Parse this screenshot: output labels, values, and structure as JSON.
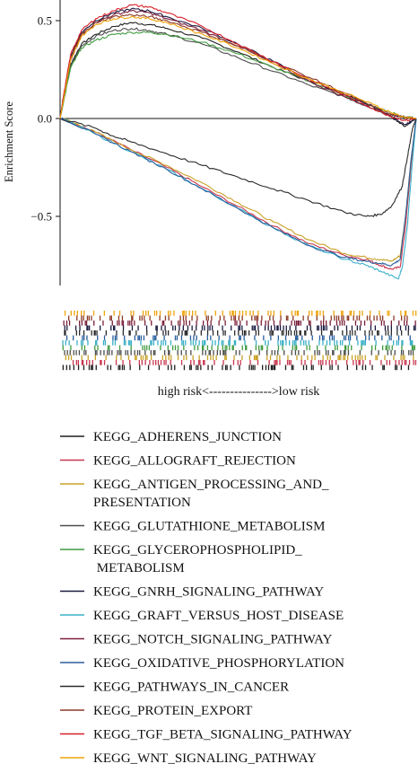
{
  "chart_data": {
    "type": "line",
    "ylabel": "Enrichment Score",
    "yticks": [
      0.5,
      0.0,
      -0.5
    ],
    "ytick_labels": [
      "0.5",
      "0.0",
      "−0.5"
    ],
    "ylim": [
      -0.85,
      0.6
    ],
    "x_direction_label": "high risk<--------------->low risk",
    "grid": false,
    "legend_position": "below",
    "series": [
      {
        "name": "KEGG_ADHERENS_JUNCTION",
        "color": "#1f1f1f",
        "points": [
          [
            0,
            0
          ],
          [
            0.01,
            0.1
          ],
          [
            0.03,
            0.28
          ],
          [
            0.06,
            0.38
          ],
          [
            0.1,
            0.43
          ],
          [
            0.15,
            0.47
          ],
          [
            0.2,
            0.49
          ],
          [
            0.25,
            0.48
          ],
          [
            0.3,
            0.46
          ],
          [
            0.4,
            0.41
          ],
          [
            0.5,
            0.34
          ],
          [
            0.6,
            0.26
          ],
          [
            0.7,
            0.19
          ],
          [
            0.8,
            0.12
          ],
          [
            0.88,
            0.06
          ],
          [
            0.93,
            0.01
          ],
          [
            0.97,
            -0.04
          ],
          [
            1,
            0
          ]
        ]
      },
      {
        "name": "KEGG_ALLOGRAFT_REJECTION",
        "color": "#c8364f",
        "points": [
          [
            0,
            0
          ],
          [
            0.012,
            -0.004
          ],
          [
            0.1,
            -0.07
          ],
          [
            0.2,
            -0.16
          ],
          [
            0.3,
            -0.25
          ],
          [
            0.4,
            -0.35
          ],
          [
            0.5,
            -0.45
          ],
          [
            0.6,
            -0.55
          ],
          [
            0.7,
            -0.64
          ],
          [
            0.8,
            -0.7
          ],
          [
            0.86,
            -0.72
          ],
          [
            0.9,
            -0.75
          ],
          [
            0.93,
            -0.77
          ],
          [
            0.955,
            -0.76
          ],
          [
            0.97,
            -0.55
          ],
          [
            0.985,
            -0.25
          ],
          [
            1,
            0
          ]
        ]
      },
      {
        "name": "KEGG_ANTIGEN_PROCESSING_AND_\nPRESENTATION",
        "color": "#c9a227",
        "points": [
          [
            0,
            0
          ],
          [
            0.015,
            -0.004
          ],
          [
            0.1,
            -0.07
          ],
          [
            0.2,
            -0.16
          ],
          [
            0.3,
            -0.24
          ],
          [
            0.4,
            -0.33
          ],
          [
            0.5,
            -0.43
          ],
          [
            0.6,
            -0.53
          ],
          [
            0.7,
            -0.62
          ],
          [
            0.8,
            -0.69
          ],
          [
            0.86,
            -0.71
          ],
          [
            0.9,
            -0.72
          ],
          [
            0.93,
            -0.73
          ],
          [
            0.955,
            -0.7
          ],
          [
            0.97,
            -0.5
          ],
          [
            0.985,
            -0.22
          ],
          [
            1,
            0
          ]
        ]
      },
      {
        "name": "KEGG_GLUTATHIONE_METABOLISM",
        "color": "#4d4d4d",
        "points": [
          [
            0,
            0
          ],
          [
            0.01,
            0.09
          ],
          [
            0.03,
            0.27
          ],
          [
            0.06,
            0.37
          ],
          [
            0.1,
            0.42
          ],
          [
            0.15,
            0.45
          ],
          [
            0.2,
            0.46
          ],
          [
            0.25,
            0.45
          ],
          [
            0.3,
            0.43
          ],
          [
            0.4,
            0.38
          ],
          [
            0.5,
            0.31
          ],
          [
            0.6,
            0.24
          ],
          [
            0.7,
            0.17
          ],
          [
            0.8,
            0.11
          ],
          [
            0.88,
            0.05
          ],
          [
            0.92,
            0.02
          ],
          [
            0.96,
            0.01
          ],
          [
            1,
            0
          ]
        ]
      },
      {
        "name": "KEGG_GLYCEROPHOSPHOLIPID_\n METABOLISM",
        "color": "#3f9b3f",
        "points": [
          [
            0,
            0
          ],
          [
            0.01,
            0.09
          ],
          [
            0.03,
            0.26
          ],
          [
            0.06,
            0.36
          ],
          [
            0.1,
            0.4
          ],
          [
            0.15,
            0.43
          ],
          [
            0.2,
            0.44
          ],
          [
            0.25,
            0.44
          ],
          [
            0.3,
            0.43
          ],
          [
            0.4,
            0.39
          ],
          [
            0.5,
            0.33
          ],
          [
            0.6,
            0.26
          ],
          [
            0.7,
            0.19
          ],
          [
            0.8,
            0.12
          ],
          [
            0.88,
            0.06
          ],
          [
            0.93,
            0.03
          ],
          [
            0.96,
            0.01
          ],
          [
            1,
            0
          ]
        ]
      },
      {
        "name": "KEGG_GNRH_SIGNALING_PATHWAY",
        "color": "#1a1a40",
        "points": [
          [
            0,
            0
          ],
          [
            0.01,
            0.12
          ],
          [
            0.03,
            0.32
          ],
          [
            0.06,
            0.44
          ],
          [
            0.1,
            0.5
          ],
          [
            0.15,
            0.54
          ],
          [
            0.2,
            0.56
          ],
          [
            0.25,
            0.55
          ],
          [
            0.3,
            0.52
          ],
          [
            0.4,
            0.46
          ],
          [
            0.5,
            0.38
          ],
          [
            0.6,
            0.29
          ],
          [
            0.7,
            0.2
          ],
          [
            0.8,
            0.12
          ],
          [
            0.88,
            0.06
          ],
          [
            0.93,
            0.01
          ],
          [
            0.97,
            -0.03
          ],
          [
            1,
            0
          ]
        ]
      },
      {
        "name": "KEGG_GRAFT_VERSUS_HOST_DISEASE",
        "color": "#3ab0c9",
        "points": [
          [
            0,
            0
          ],
          [
            0.01,
            -0.004
          ],
          [
            0.1,
            -0.08
          ],
          [
            0.2,
            -0.17
          ],
          [
            0.3,
            -0.26
          ],
          [
            0.4,
            -0.36
          ],
          [
            0.5,
            -0.46
          ],
          [
            0.6,
            -0.56
          ],
          [
            0.7,
            -0.65
          ],
          [
            0.8,
            -0.72
          ],
          [
            0.86,
            -0.75
          ],
          [
            0.9,
            -0.78
          ],
          [
            0.95,
            -0.82
          ],
          [
            0.962,
            -0.75
          ],
          [
            0.975,
            -0.55
          ],
          [
            0.988,
            -0.25
          ],
          [
            1,
            0
          ]
        ]
      },
      {
        "name": "KEGG_NOTCH_SIGNALING_PATHWAY",
        "color": "#7a1f3a",
        "points": [
          [
            0,
            0
          ],
          [
            0.01,
            0.11
          ],
          [
            0.03,
            0.3
          ],
          [
            0.06,
            0.42
          ],
          [
            0.1,
            0.49
          ],
          [
            0.15,
            0.53
          ],
          [
            0.2,
            0.55
          ],
          [
            0.25,
            0.54
          ],
          [
            0.3,
            0.51
          ],
          [
            0.4,
            0.45
          ],
          [
            0.5,
            0.37
          ],
          [
            0.6,
            0.28
          ],
          [
            0.7,
            0.19
          ],
          [
            0.8,
            0.11
          ],
          [
            0.88,
            0.05
          ],
          [
            0.93,
            0.02
          ],
          [
            0.96,
            0.01
          ],
          [
            1,
            0
          ]
        ]
      },
      {
        "name": "KEGG_OXIDATIVE_PHOSPHORYLATION",
        "color": "#2a5f9e",
        "points": [
          [
            0,
            0
          ],
          [
            0.01,
            -0.003
          ],
          [
            0.1,
            -0.08
          ],
          [
            0.2,
            -0.17
          ],
          [
            0.3,
            -0.26
          ],
          [
            0.4,
            -0.36
          ],
          [
            0.5,
            -0.46
          ],
          [
            0.6,
            -0.56
          ],
          [
            0.7,
            -0.65
          ],
          [
            0.8,
            -0.71
          ],
          [
            0.86,
            -0.73
          ],
          [
            0.9,
            -0.74
          ],
          [
            0.93,
            -0.75
          ],
          [
            0.955,
            -0.72
          ],
          [
            0.97,
            -0.5
          ],
          [
            0.985,
            -0.22
          ],
          [
            1,
            0
          ]
        ]
      },
      {
        "name": "KEGG_PATHWAYS_IN_CANCER",
        "color": "#2b2b2b",
        "points": [
          [
            0,
            0
          ],
          [
            0.1,
            -0.05
          ],
          [
            0.15,
            -0.09
          ],
          [
            0.2,
            -0.12
          ],
          [
            0.3,
            -0.18
          ],
          [
            0.4,
            -0.24
          ],
          [
            0.5,
            -0.3
          ],
          [
            0.6,
            -0.36
          ],
          [
            0.7,
            -0.42
          ],
          [
            0.8,
            -0.48
          ],
          [
            0.86,
            -0.5
          ],
          [
            0.9,
            -0.49
          ],
          [
            0.93,
            -0.45
          ],
          [
            0.96,
            -0.35
          ],
          [
            0.975,
            -0.2
          ],
          [
            0.99,
            -0.05
          ],
          [
            1,
            0
          ]
        ]
      },
      {
        "name": "KEGG_PROTEIN_EXPORT",
        "color": "#8b3a2a",
        "points": [
          [
            0,
            0
          ],
          [
            0.01,
            0.11
          ],
          [
            0.03,
            0.31
          ],
          [
            0.06,
            0.43
          ],
          [
            0.1,
            0.49
          ],
          [
            0.15,
            0.52
          ],
          [
            0.2,
            0.53
          ],
          [
            0.25,
            0.52
          ],
          [
            0.3,
            0.5
          ],
          [
            0.4,
            0.44
          ],
          [
            0.5,
            0.37
          ],
          [
            0.6,
            0.29
          ],
          [
            0.7,
            0.21
          ],
          [
            0.8,
            0.13
          ],
          [
            0.88,
            0.06
          ],
          [
            0.93,
            0.02
          ],
          [
            0.96,
            0.01
          ],
          [
            1,
            0
          ]
        ]
      },
      {
        "name": "KEGG_TGF_BETA_SIGNALING_PATHWAY",
        "color": "#d6202a",
        "points": [
          [
            0,
            0
          ],
          [
            0.01,
            0.12
          ],
          [
            0.03,
            0.33
          ],
          [
            0.06,
            0.45
          ],
          [
            0.1,
            0.51
          ],
          [
            0.15,
            0.55
          ],
          [
            0.2,
            0.58
          ],
          [
            0.25,
            0.57
          ],
          [
            0.3,
            0.54
          ],
          [
            0.4,
            0.47
          ],
          [
            0.5,
            0.38
          ],
          [
            0.6,
            0.29
          ],
          [
            0.7,
            0.2
          ],
          [
            0.8,
            0.12
          ],
          [
            0.88,
            0.05
          ],
          [
            0.93,
            0.01
          ],
          [
            0.97,
            -0.01
          ],
          [
            1,
            0
          ]
        ]
      },
      {
        "name": "KEGG_WNT_SIGNALING_PATHWAY",
        "color": "#f0a30a",
        "points": [
          [
            0,
            0
          ],
          [
            0.01,
            0.1
          ],
          [
            0.03,
            0.3
          ],
          [
            0.06,
            0.42
          ],
          [
            0.1,
            0.48
          ],
          [
            0.15,
            0.51
          ],
          [
            0.2,
            0.52
          ],
          [
            0.25,
            0.51
          ],
          [
            0.3,
            0.49
          ],
          [
            0.4,
            0.43
          ],
          [
            0.5,
            0.36
          ],
          [
            0.6,
            0.28
          ],
          [
            0.7,
            0.2
          ],
          [
            0.8,
            0.13
          ],
          [
            0.88,
            0.07
          ],
          [
            0.93,
            0.03
          ],
          [
            0.96,
            0.01
          ],
          [
            1,
            0
          ]
        ]
      }
    ],
    "hit_colors": [
      "#f0a30a",
      "#8b3a2a",
      "#7a1f3a",
      "#1a1a40",
      "#2b2b2b",
      "#2a5f9e",
      "#3ab0c9",
      "#3f9b3f",
      "#4d4d4d",
      "#c9a227",
      "#c8364f",
      "#1f1f1f"
    ]
  }
}
